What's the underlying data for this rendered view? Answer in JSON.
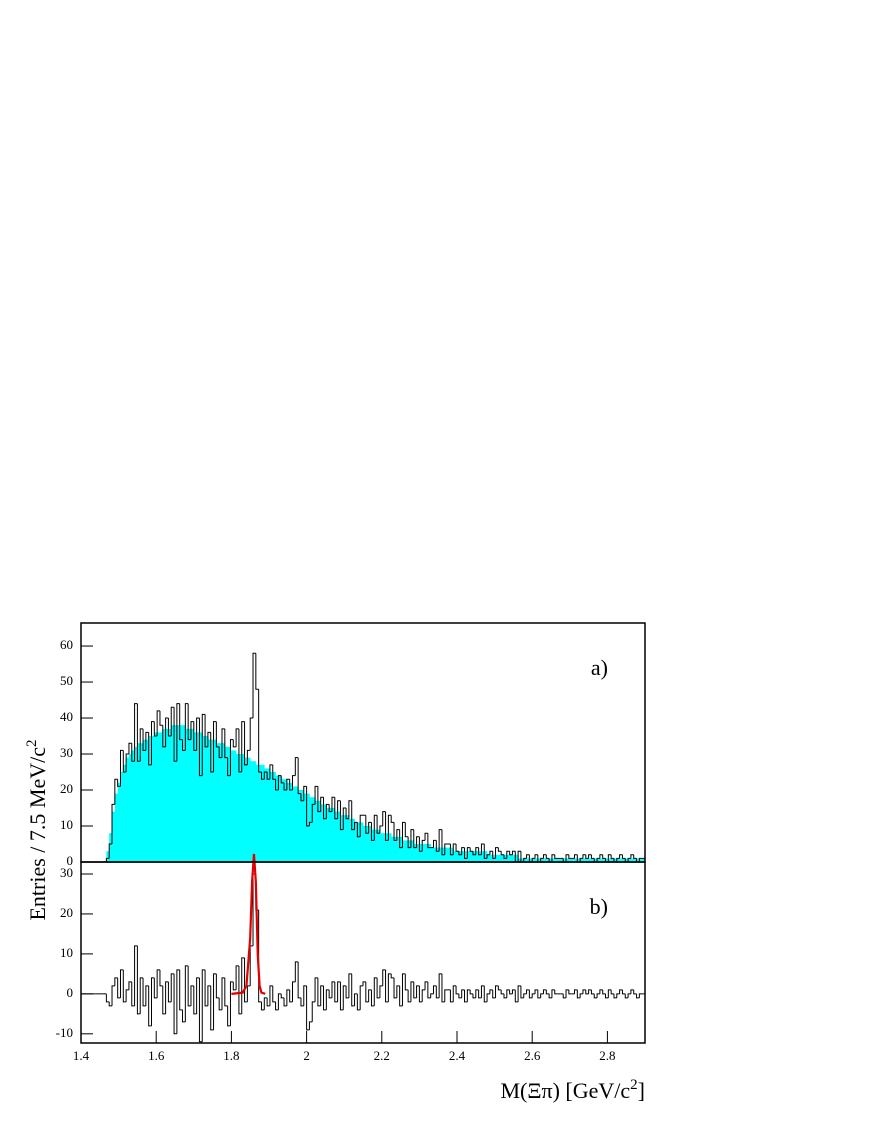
{
  "chart_data": {
    "type": "histogram",
    "ylabel": [
      "Entries / 7.5 MeV/c",
      "2"
    ],
    "xlabel": [
      "M(Ξπ) [GeV/c",
      "2",
      "]"
    ],
    "xlim": [
      1.4,
      2.9
    ],
    "xticks": [
      1.4,
      1.6,
      1.8,
      2,
      2.2,
      2.4,
      2.6,
      2.8
    ],
    "bins": [
      1.4,
      1.4075,
      1.415,
      1.4225,
      1.43,
      1.4375,
      1.445,
      1.4525,
      1.46,
      1.4675,
      1.475,
      1.4825,
      1.49,
      1.4975,
      1.505,
      1.5125,
      1.52,
      1.5275,
      1.535,
      1.5425,
      1.55,
      1.5575,
      1.565,
      1.5725,
      1.58,
      1.5875,
      1.595,
      1.6025,
      1.61,
      1.6175,
      1.625,
      1.6325,
      1.64,
      1.6475,
      1.655,
      1.6625,
      1.67,
      1.6775,
      1.685,
      1.6925,
      1.7,
      1.7075,
      1.715,
      1.7225,
      1.73,
      1.7375,
      1.745,
      1.7525,
      1.76,
      1.7675,
      1.775,
      1.7825,
      1.79,
      1.7975,
      1.805,
      1.8125,
      1.82,
      1.8275,
      1.835,
      1.8425,
      1.85,
      1.8575,
      1.865,
      1.8725,
      1.88,
      1.8875,
      1.895,
      1.9025,
      1.91,
      1.9175,
      1.925,
      1.9325,
      1.94,
      1.9475,
      1.955,
      1.9625,
      1.97,
      1.9775,
      1.985,
      1.9925,
      2,
      2.0075,
      2.015,
      2.0225,
      2.03,
      2.0375,
      2.045,
      2.0525,
      2.06,
      2.0675,
      2.075,
      2.0825,
      2.09,
      2.0975,
      2.105,
      2.1125,
      2.12,
      2.1275,
      2.135,
      2.1425,
      2.15,
      2.1575,
      2.165,
      2.1725,
      2.18,
      2.1875,
      2.195,
      2.2025,
      2.21,
      2.2175,
      2.225,
      2.2325,
      2.24,
      2.2475,
      2.255,
      2.2625,
      2.27,
      2.2775,
      2.285,
      2.2925,
      2.3,
      2.3075,
      2.315,
      2.3225,
      2.33,
      2.3375,
      2.345,
      2.3525,
      2.36,
      2.3675,
      2.375,
      2.3825,
      2.39,
      2.3975,
      2.405,
      2.4125,
      2.42,
      2.4275,
      2.435,
      2.4425,
      2.45,
      2.4575,
      2.465,
      2.4725,
      2.48,
      2.4875,
      2.495,
      2.5025,
      2.51,
      2.5175,
      2.525,
      2.5325,
      2.54,
      2.5475,
      2.555,
      2.5625,
      2.57,
      2.5775,
      2.585,
      2.5925,
      2.6,
      2.6075,
      2.615,
      2.6225,
      2.63,
      2.6375,
      2.645,
      2.6525,
      2.66,
      2.6675,
      2.675,
      2.6825,
      2.69,
      2.6975,
      2.705,
      2.7125,
      2.72,
      2.7275,
      2.735,
      2.7425,
      2.75,
      2.7575,
      2.765,
      2.7725,
      2.78,
      2.7875,
      2.795,
      2.8025,
      2.81,
      2.8175,
      2.825,
      2.8325,
      2.84,
      2.8475,
      2.855,
      2.8625,
      2.87,
      2.8775,
      2.885,
      2.8925,
      2.9
    ],
    "panels": [
      {
        "label": "a)",
        "ylim": [
          0,
          66.4
        ],
        "yticks": [
          0,
          10,
          20,
          30,
          40,
          50,
          60
        ],
        "series": [
          {
            "type": "bar",
            "color": "#00ffff",
            "values": [
              0,
              0,
              0,
              0,
              0,
              0,
              0,
              0,
              0,
              3,
              8,
              14,
              19,
              22,
              25,
              27,
              29,
              30,
              31,
              32,
              33,
              33,
              34,
              34,
              35,
              35,
              36,
              36,
              36,
              37,
              37,
              37,
              38,
              38,
              38,
              38,
              38,
              37,
              37,
              37,
              36,
              36,
              36,
              35,
              35,
              34,
              34,
              34,
              33,
              33,
              33,
              32,
              32,
              31,
              31,
              30,
              30,
              30,
              29,
              29,
              28,
              28,
              27,
              27,
              27,
              26,
              26,
              25,
              25,
              24,
              24,
              23,
              23,
              22,
              22,
              21,
              21,
              20,
              20,
              19,
              19,
              18,
              18,
              17,
              17,
              16,
              16,
              15,
              15,
              15,
              14,
              14,
              13,
              13,
              13,
              12,
              12,
              11,
              11,
              11,
              10,
              10,
              10,
              9,
              9,
              9,
              8,
              8,
              8,
              8,
              7,
              7,
              7,
              7,
              6,
              6,
              6,
              6,
              5,
              5,
              5,
              5,
              5,
              5,
              4,
              4,
              4,
              4,
              4,
              4,
              4,
              4,
              3,
              3,
              3,
              3,
              3,
              3,
              3,
              3,
              3,
              3,
              3,
              3,
              2,
              2,
              2,
              2,
              2,
              2,
              2,
              2,
              2,
              2,
              2,
              1,
              1,
              1,
              1,
              1,
              1,
              1,
              1,
              1,
              1,
              1,
              1,
              1,
              1,
              1,
              1,
              1,
              1,
              1,
              1,
              1,
              1,
              1,
              1,
              1,
              1,
              1,
              1,
              1,
              1,
              1,
              1,
              1,
              1,
              1,
              1,
              1,
              1,
              1,
              1,
              1,
              1,
              1,
              1,
              1
            ]
          },
          {
            "type": "step",
            "color": "#000000",
            "values": [
              0,
              0,
              0,
              0,
              0,
              0,
              0,
              0,
              0,
              1,
              5,
              16,
              23,
              21,
              31,
              25,
              30,
              33,
              28,
              44,
              28,
              37,
              31,
              36,
              27,
              39,
              35,
              42,
              38,
              32,
              40,
              35,
              43,
              28,
              44,
              34,
              31,
              44,
              34,
              39,
              31,
              40,
              24,
              41,
              32,
              36,
              25,
              39,
              32,
              29,
              37,
              29,
              24,
              34,
              32,
              37,
              25,
              39,
              27,
              31,
              40,
              58,
              48,
              25,
              23,
              25,
              23,
              27,
              23,
              20,
              24,
              22,
              20,
              23,
              20,
              24,
              29,
              19,
              17,
              21,
              10,
              11,
              16,
              21,
              14,
              18,
              12,
              16,
              14,
              18,
              12,
              17,
              9,
              15,
              12,
              17,
              9,
              11,
              7,
              13,
              13,
              8,
              11,
              6,
              13,
              8,
              10,
              14,
              6,
              13,
              11,
              6,
              9,
              4,
              11,
              7,
              4,
              9,
              4,
              7,
              3,
              6,
              8,
              4,
              4,
              6,
              3,
              9,
              2,
              5,
              5,
              2,
              5,
              3,
              2,
              4,
              1,
              4,
              3,
              2,
              4,
              2,
              5,
              1,
              2,
              3,
              1,
              4,
              3,
              2,
              1,
              3,
              2,
              3,
              0,
              3,
              0,
              1,
              2,
              0,
              1,
              2,
              0,
              1,
              2,
              1,
              0,
              2,
              1,
              1,
              1,
              0,
              2,
              1,
              1,
              2,
              0,
              1,
              2,
              1,
              2,
              1,
              0,
              1,
              2,
              1,
              0,
              2,
              1,
              0,
              1,
              2,
              1,
              0,
              1,
              2,
              1,
              0,
              1,
              1
            ]
          }
        ]
      },
      {
        "label": "b)",
        "ylim": [
          -12.3,
          33
        ],
        "yticks": [
          -10,
          0,
          10,
          20,
          30
        ],
        "series": [
          {
            "type": "step",
            "color": "#000000",
            "values": [
              0,
              0,
              0,
              0,
              0,
              0,
              0,
              0,
              0,
              -2,
              -3,
              2,
              4,
              -1,
              6,
              -2,
              1,
              3,
              -3,
              12,
              -5,
              4,
              -3,
              2,
              -8,
              4,
              -1,
              6,
              2,
              -5,
              3,
              -2,
              5,
              -10,
              6,
              -4,
              -7,
              7,
              -3,
              2,
              -5,
              4,
              -12,
              6,
              -3,
              2,
              -9,
              5,
              -1,
              -4,
              4,
              -3,
              -8,
              3,
              1,
              7,
              -5,
              9,
              -2,
              2,
              12,
              30,
              21,
              -2,
              -4,
              -1,
              -3,
              2,
              -2,
              -4,
              0,
              -1,
              -3,
              1,
              -2,
              3,
              8,
              -1,
              -3,
              2,
              -9,
              -7,
              -2,
              4,
              -3,
              2,
              -4,
              1,
              -1,
              3,
              -2,
              3,
              -4,
              2,
              -1,
              5,
              -3,
              0,
              -4,
              2,
              3,
              -2,
              1,
              -3,
              4,
              -1,
              2,
              6,
              -2,
              5,
              4,
              -1,
              2,
              -3,
              5,
              1,
              -2,
              3,
              -1,
              2,
              -2,
              1,
              3,
              -1,
              0,
              2,
              -1,
              5,
              -2,
              1,
              1,
              -2,
              2,
              0,
              -1,
              1,
              -2,
              1,
              0,
              -1,
              1,
              -1,
              2,
              -2,
              0,
              1,
              -1,
              2,
              1,
              0,
              -1,
              1,
              0,
              1,
              -2,
              2,
              -1,
              0,
              1,
              -1,
              0,
              1,
              -1,
              0,
              1,
              0,
              -1,
              1,
              0,
              0,
              0,
              -1,
              1,
              0,
              0,
              1,
              -1,
              0,
              1,
              0,
              1,
              0,
              -1,
              0,
              1,
              0,
              -1,
              1,
              0,
              -1,
              0,
              1,
              0,
              -1,
              0,
              1,
              0,
              -1,
              0,
              0
            ]
          },
          {
            "type": "line",
            "color": "#e00000",
            "x": [
              1.8,
              1.83,
              1.84,
              1.85,
              1.855,
              1.86,
              1.865,
              1.87,
              1.875,
              1.88,
              1.89
            ],
            "values": [
              0,
              0.3,
              2,
              14,
              28,
              35,
              28,
              10,
              2,
              0.3,
              0
            ]
          }
        ]
      }
    ]
  }
}
